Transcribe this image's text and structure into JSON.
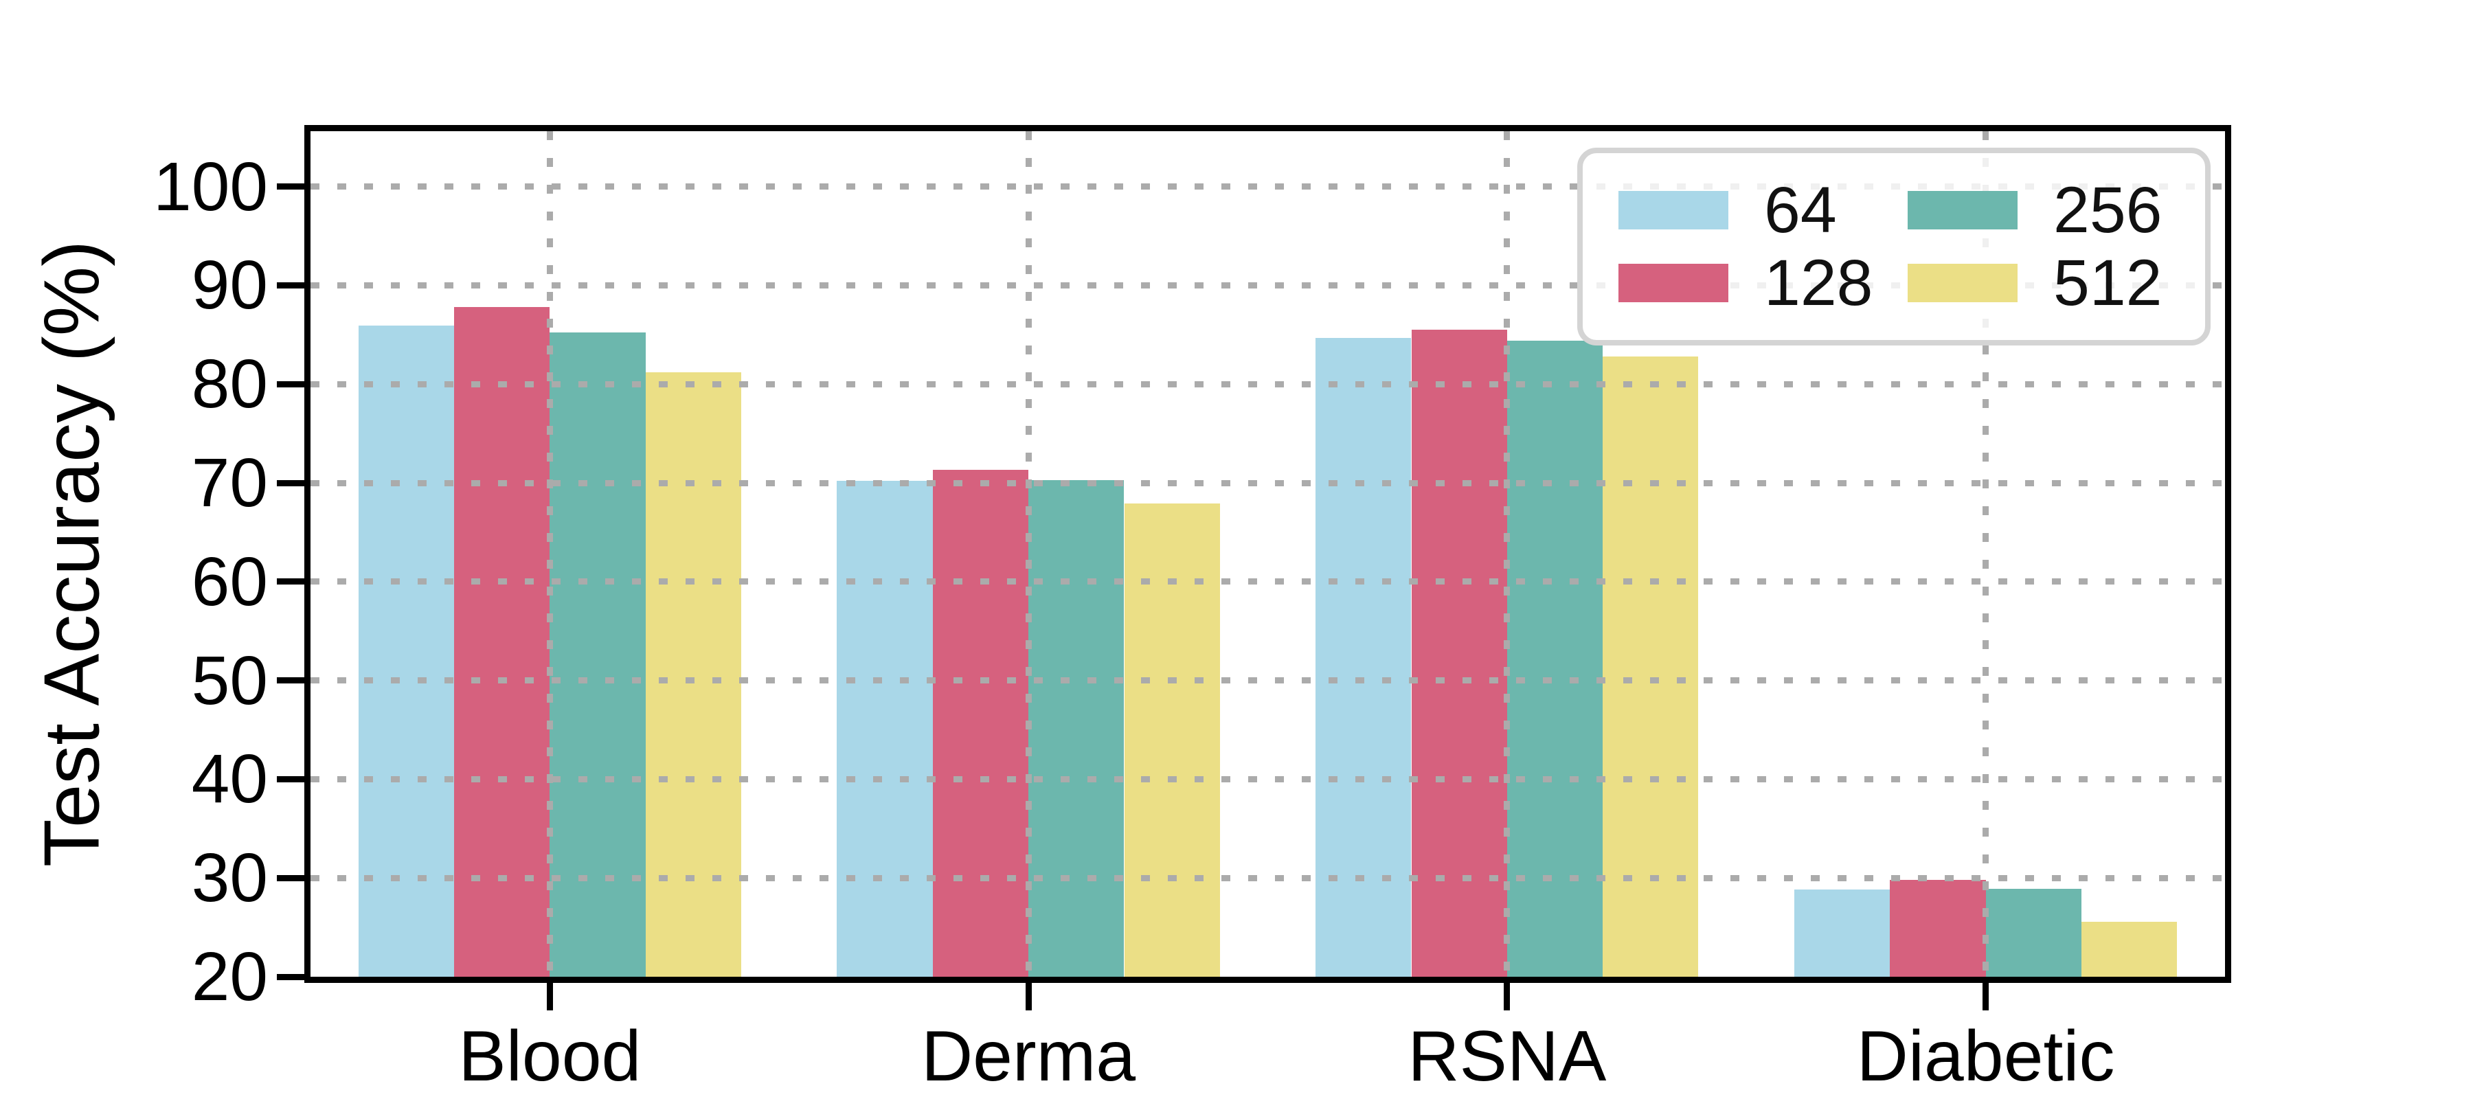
{
  "chart_data": {
    "type": "bar",
    "title": "",
    "categories": [
      "Blood",
      "Derma",
      "RSNA",
      "Diabetic"
    ],
    "series": [
      {
        "name": "64",
        "color": "#a9d7e8",
        "values": [
          85.9,
          70.2,
          84.7,
          28.8
        ]
      },
      {
        "name": "128",
        "color": "#d6617e",
        "values": [
          87.8,
          71.3,
          85.5,
          29.8
        ]
      },
      {
        "name": "256",
        "color": "#6cb7ad",
        "values": [
          85.2,
          70.3,
          84.4,
          28.9
        ]
      },
      {
        "name": "512",
        "color": "#ebdf86",
        "values": [
          81.2,
          67.9,
          82.8,
          25.6
        ]
      }
    ],
    "xlabel": "",
    "ylabel": "Test Accuracy (%)",
    "ylim": [
      20,
      105.6
    ],
    "yticks": [
      20,
      30,
      40,
      50,
      60,
      70,
      80,
      90,
      100
    ],
    "grid": true,
    "grid_style": "dotted",
    "grid_color": "#ababab",
    "legend_position": "upper right",
    "bar_group_width_fraction": 0.8,
    "spine_color": "#000000"
  }
}
